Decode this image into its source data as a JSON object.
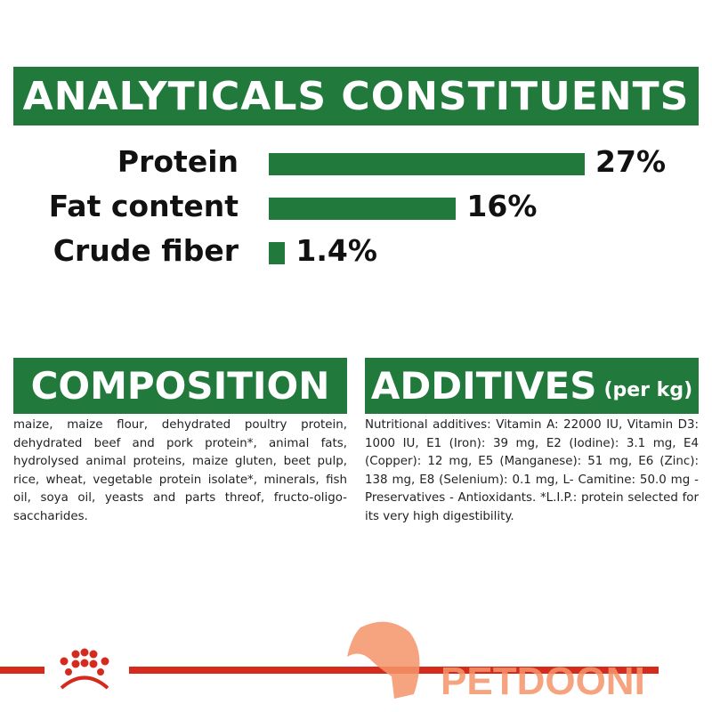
{
  "analytics": {
    "title": "ANALYTICALS CONSTITUENTS"
  },
  "chart_data": {
    "type": "bar",
    "orientation": "horizontal",
    "categories": [
      "Protein",
      "Fat content",
      "Crude fiber"
    ],
    "values": [
      27,
      16,
      1.4
    ],
    "data_labels": [
      "27%",
      "16%",
      "1.4%"
    ],
    "unit": "%",
    "bar_color": "#217a3b",
    "grid": false
  },
  "composition": {
    "title": "COMPOSITION",
    "text": "maize, maize flour, dehydrated poultry protein, dehydrated beef and pork protein*, animal fats, hydrolysed animal proteins, maize gluten, beet pulp, rice, wheat, vegetable protein isolate*, minerals, fish oil, soya oil, yeasts and parts threof, fructo-oligo-saccharides."
  },
  "additives": {
    "title": "ADDITIVES",
    "subtitle": "(per kg)",
    "text": "Nutritional additives: Vitamin A: 22000 IU, Vitamin D3: 1000 IU, E1 (Iron): 39 mg, E2 (Iodine): 3.1 mg, E4 (Copper): 12 mg, E5 (Manganese): 51 mg, E6 (Zinc): 138 mg, E8 (Selenium): 0.1 mg, L- Camitine: 50.0 mg - Preservatives - Antioxidants. *L.I.P.: protein selected for its very high digestibility."
  },
  "footer": {
    "brand_icon": "crown-icon",
    "watermark": "PETDOONI",
    "line_color": "#d52b1e",
    "watermark_color": "#f5956a"
  }
}
